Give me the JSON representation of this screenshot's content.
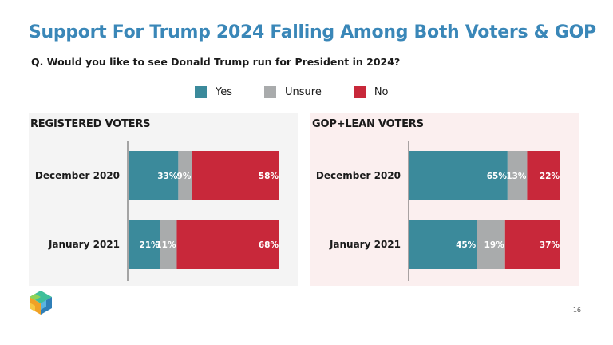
{
  "title": "Support For Trump 2024 Falling Among Both Voters & GOP",
  "question": "Q. Would you like to see Donald Trump run for President in 2024?",
  "legend": [
    {
      "label": "Yes",
      "color": "#3b8a9b"
    },
    {
      "label": "Unsure",
      "color": "#a9abac"
    },
    {
      "label": "No",
      "color": "#c8283a"
    }
  ],
  "page_number": "16",
  "chart_data": [
    {
      "type": "bar",
      "orientation": "horizontal",
      "stacked": true,
      "title": "REGISTERED VOTERS",
      "categories": [
        "December 2020",
        "January 2021"
      ],
      "series": [
        {
          "name": "Yes",
          "values": [
            33,
            21
          ],
          "labels": [
            "33%",
            "21%"
          ]
        },
        {
          "name": "Unsure",
          "values": [
            9,
            11
          ],
          "labels": [
            "9%",
            "11%"
          ]
        },
        {
          "name": "No",
          "values": [
            58,
            68
          ],
          "labels": [
            "58%",
            "68%"
          ]
        }
      ]
    },
    {
      "type": "bar",
      "orientation": "horizontal",
      "stacked": true,
      "title": "GOP+LEAN VOTERS",
      "categories": [
        "December 2020",
        "January 2021"
      ],
      "series": [
        {
          "name": "Yes",
          "values": [
            65,
            45
          ],
          "labels": [
            "65%",
            "45%"
          ]
        },
        {
          "name": "Unsure",
          "values": [
            13,
            19
          ],
          "labels": [
            "13%",
            "19%"
          ]
        },
        {
          "name": "No",
          "values": [
            22,
            37
          ],
          "labels": [
            "22%",
            "37%"
          ]
        }
      ]
    }
  ]
}
